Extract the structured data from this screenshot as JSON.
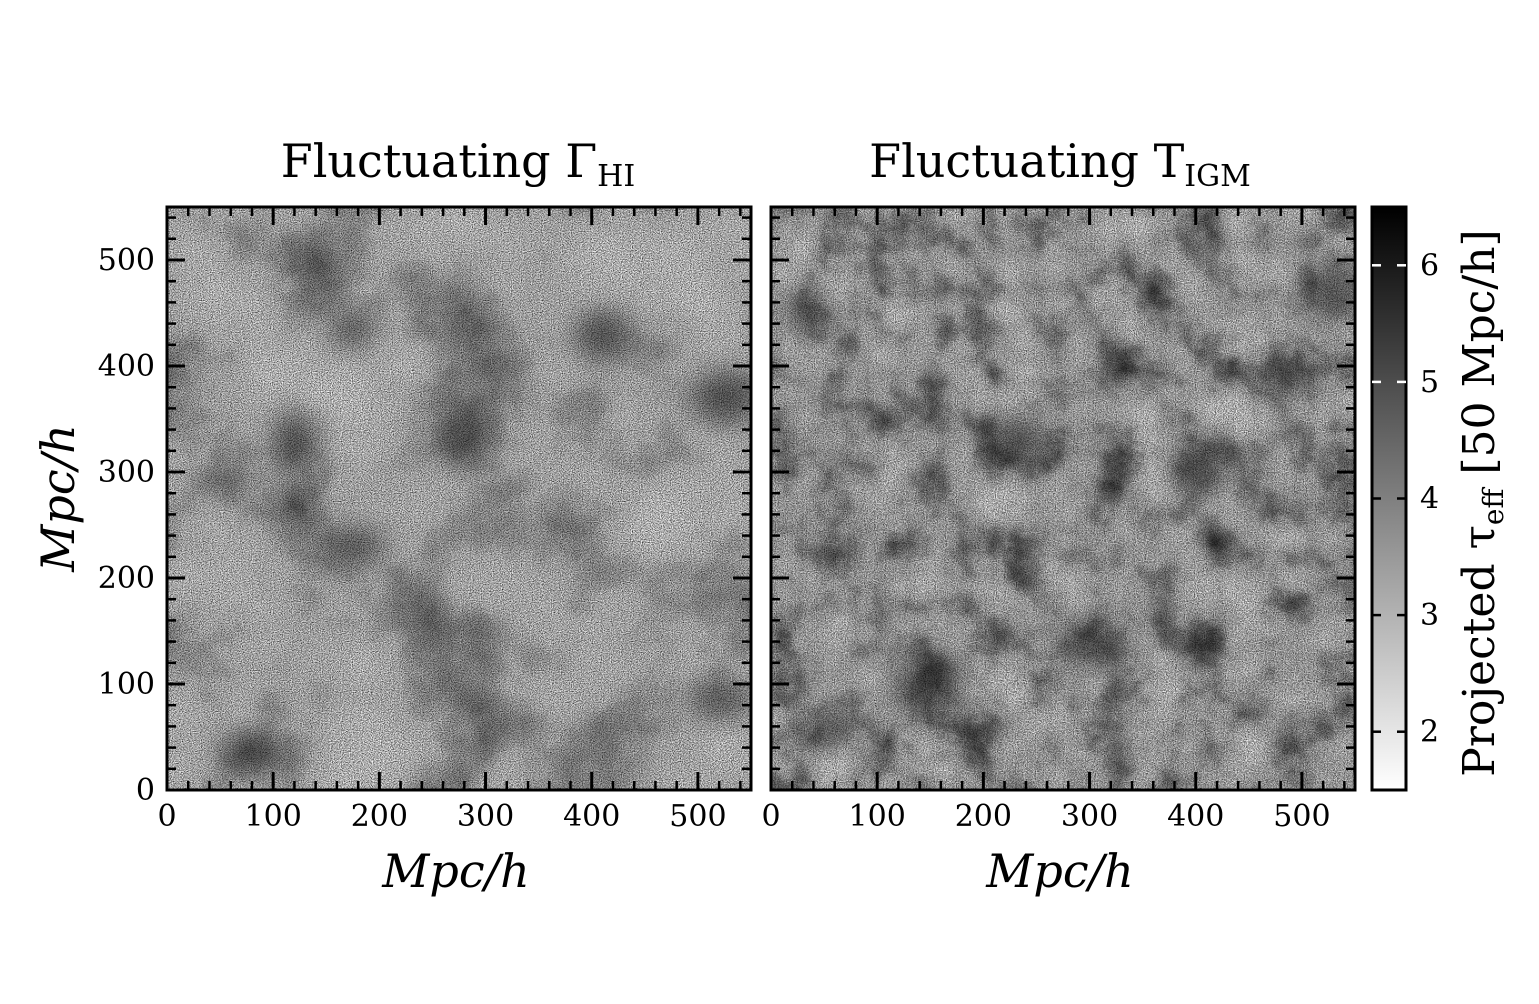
{
  "chart_data": [
    {
      "type": "heatmap",
      "title": "Fluctuating Γ",
      "title_subscript": "HI",
      "xlabel": "Mpc/h",
      "ylabel": "Mpc/h",
      "xlim": [
        0,
        550
      ],
      "ylim": [
        0,
        550
      ],
      "xticks": [
        "0",
        "100",
        "200",
        "300",
        "400",
        "500"
      ],
      "yticks": [
        "0",
        "100",
        "200",
        "300",
        "400",
        "500"
      ],
      "colormap": "greys",
      "texture": "large smooth ionization bubbles with few dark regions",
      "dark_regions": [
        [
          175,
          435
        ],
        [
          280,
          330
        ],
        [
          175,
          230
        ],
        [
          120,
          330
        ],
        [
          520,
          85
        ],
        [
          525,
          370
        ],
        [
          75,
          35
        ],
        [
          410,
          430
        ]
      ]
    },
    {
      "type": "heatmap",
      "title": "Fluctuating T",
      "title_subscript": "IGM",
      "xlabel": "Mpc/h",
      "xlim": [
        0,
        550
      ],
      "ylim": [
        0,
        550
      ],
      "xticks": [
        "0",
        "100",
        "200",
        "300",
        "400",
        "500"
      ],
      "yticks": [
        "0",
        "100",
        "200",
        "300",
        "400",
        "500"
      ],
      "colormap": "greys",
      "texture": "small-scale mottled network with many dark patches",
      "dark_regions": [
        [
          35,
          450
        ],
        [
          230,
          330
        ],
        [
          300,
          140
        ],
        [
          400,
          300
        ],
        [
          485,
          390
        ],
        [
          150,
          100
        ],
        [
          60,
          60
        ],
        [
          530,
          470
        ]
      ]
    }
  ],
  "colorbar": {
    "label": "Projected τ",
    "label_subscript": "eff",
    "label_suffix": "[50 Mpc/h]",
    "range": [
      1.5,
      6.5
    ],
    "ticks": [
      "2",
      "3",
      "4",
      "5",
      "6"
    ],
    "colors": {
      "low": "#ffffff",
      "high": "#000000"
    }
  }
}
